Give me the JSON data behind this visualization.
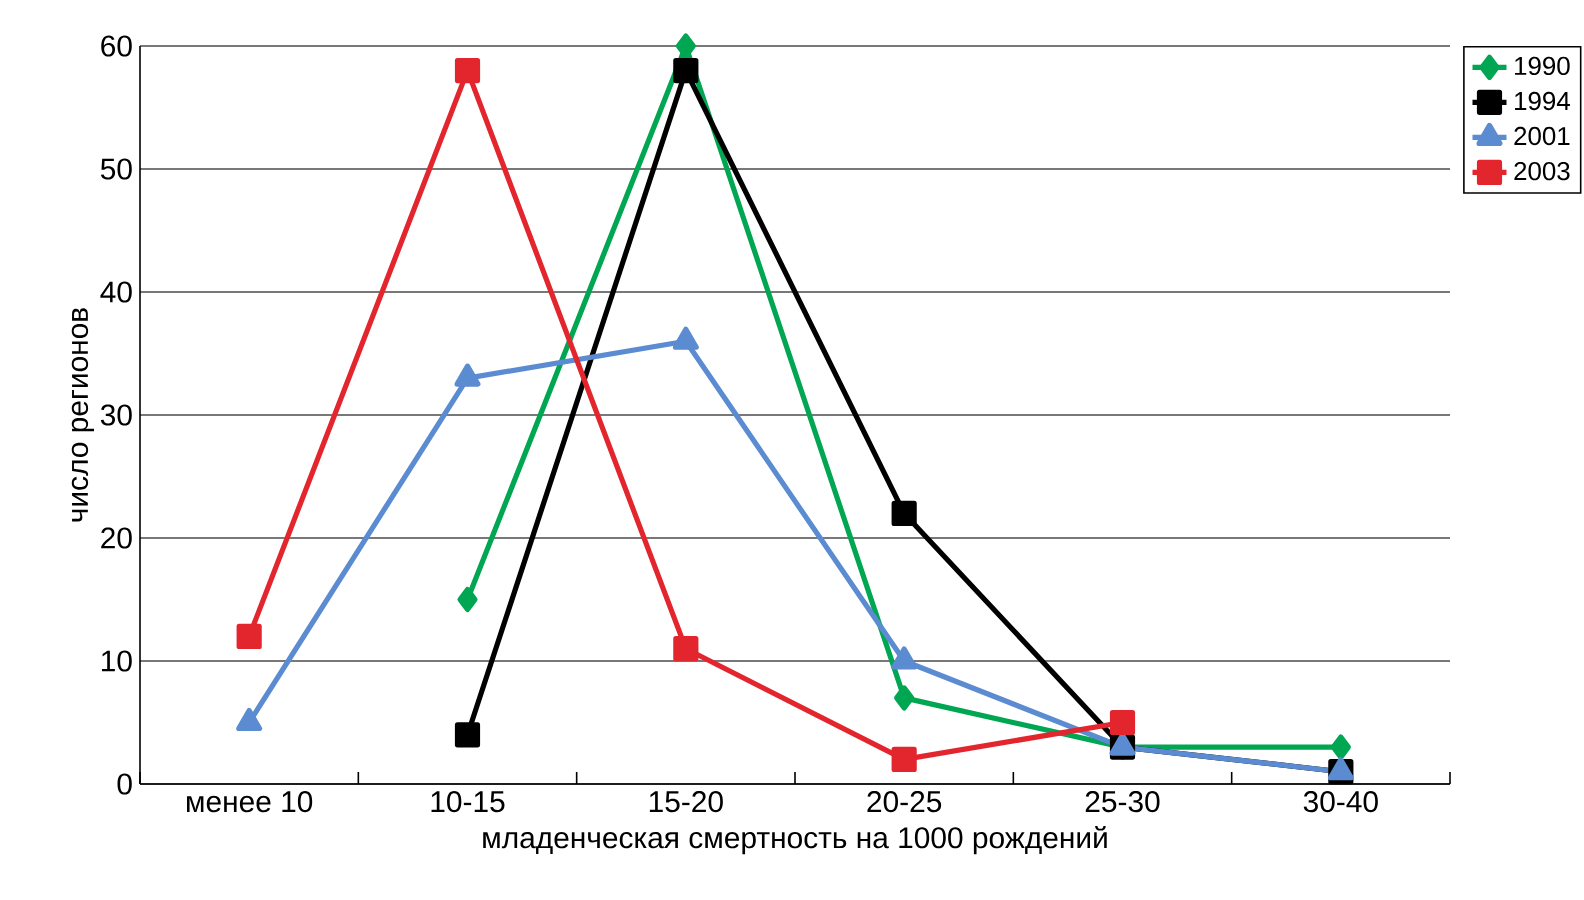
{
  "chart_data": {
    "type": "line",
    "xlabel": "младенческая смертность на 1000 рождений",
    "ylabel": "число регионов",
    "categories": [
      "менее 10",
      "10-15",
      "15-20",
      "20-25",
      "25-30",
      "30-40"
    ],
    "series": [
      {
        "name": "1990",
        "color": "#00a651",
        "marker": "diamond",
        "values": [
          null,
          15,
          60,
          7,
          3,
          3
        ]
      },
      {
        "name": "1994",
        "color": "#000000",
        "marker": "square",
        "values": [
          null,
          4,
          58,
          22,
          3,
          1
        ]
      },
      {
        "name": "2001",
        "color": "#5b8bd0",
        "marker": "triangle",
        "values": [
          5,
          33,
          36,
          10,
          3,
          1
        ]
      },
      {
        "name": "2003",
        "color": "#e3262e",
        "marker": "square",
        "values": [
          12,
          58,
          11,
          2,
          5,
          null
        ]
      }
    ],
    "ylim": [
      0,
      60
    ],
    "yticks": [
      0,
      10,
      20,
      30,
      40,
      50,
      60
    ],
    "grid": "y",
    "legend": "top right",
    "line_style": "solid"
  }
}
